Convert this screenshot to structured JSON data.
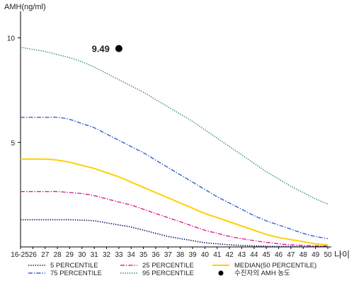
{
  "chart_data": {
    "type": "line",
    "ylabel": "AMH(ng/ml)",
    "xlabel": "나이",
    "ylim": [
      0,
      11
    ],
    "yticks": [
      {
        "v": 5,
        "label": "5"
      },
      {
        "v": 10,
        "label": "10"
      }
    ],
    "categories": [
      "16-25",
      "26",
      "27",
      "28",
      "29",
      "30",
      "31",
      "32",
      "33",
      "34",
      "35",
      "36",
      "37",
      "38",
      "39",
      "40",
      "41",
      "42",
      "43",
      "44",
      "45",
      "46",
      "47",
      "48",
      "49",
      "50"
    ],
    "grid": false,
    "series": [
      {
        "name": "95 PERCENTILE",
        "color": "#2e8b57",
        "dash": "1.4,1.8",
        "width": 1.4,
        "values": [
          9.55,
          9.45,
          9.35,
          9.2,
          9.05,
          8.85,
          8.6,
          8.3,
          8.0,
          7.7,
          7.4,
          7.05,
          6.7,
          6.35,
          6.0,
          5.6,
          5.2,
          4.8,
          4.4,
          4.0,
          3.6,
          3.25,
          2.9,
          2.6,
          2.3,
          2.05
        ]
      },
      {
        "name": "75 PERCENTILE",
        "color": "#3a5fcd",
        "dash": "6,2,1.5,2",
        "width": 1.4,
        "values": [
          6.2,
          6.2,
          6.2,
          6.2,
          6.1,
          5.9,
          5.7,
          5.4,
          5.1,
          4.8,
          4.5,
          4.15,
          3.8,
          3.45,
          3.1,
          2.75,
          2.4,
          2.1,
          1.8,
          1.5,
          1.25,
          1.05,
          0.85,
          0.65,
          0.5,
          0.4
        ]
      },
      {
        "name": "MEDIAN(50 PERCENTILE)",
        "color": "#ffd000",
        "dash": "",
        "width": 2,
        "values": [
          4.2,
          4.2,
          4.2,
          4.15,
          4.05,
          3.9,
          3.75,
          3.55,
          3.35,
          3.1,
          2.85,
          2.6,
          2.35,
          2.1,
          1.85,
          1.6,
          1.4,
          1.2,
          1.0,
          0.8,
          0.6,
          0.45,
          0.35,
          0.25,
          0.15,
          0.1
        ]
      },
      {
        "name": "25 PERCENTILE",
        "color": "#e0208a",
        "dash": "6,2,1.5,2",
        "width": 1.4,
        "values": [
          2.65,
          2.65,
          2.65,
          2.65,
          2.6,
          2.55,
          2.45,
          2.3,
          2.15,
          2.0,
          1.8,
          1.6,
          1.4,
          1.2,
          1.0,
          0.8,
          0.65,
          0.5,
          0.4,
          0.3,
          0.22,
          0.15,
          0.1,
          0.07,
          0.05,
          0.04
        ]
      },
      {
        "name": "5 PERCENTILE",
        "color": "#0a0a5a",
        "dash": "1.4,1.8",
        "width": 1.6,
        "values": [
          1.3,
          1.3,
          1.3,
          1.3,
          1.3,
          1.28,
          1.25,
          1.15,
          1.05,
          0.95,
          0.8,
          0.65,
          0.5,
          0.4,
          0.3,
          0.2,
          0.15,
          0.1,
          0.07,
          0.05,
          0.03,
          0.02,
          0.02,
          0.01,
          0.01,
          0.01
        ]
      }
    ],
    "point": {
      "name": "수진자의 AMH 농도",
      "x": "33",
      "y": 9.49,
      "label": "9.49",
      "color": "#000000"
    },
    "legend_placement": "bottom"
  }
}
